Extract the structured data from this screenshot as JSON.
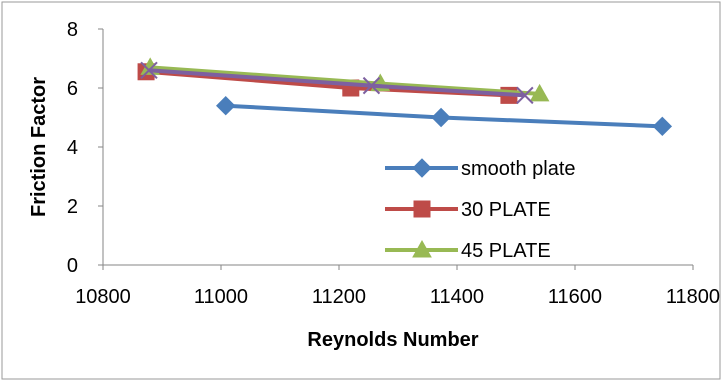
{
  "chart_data": {
    "type": "line",
    "title": "",
    "xlabel": "Reynolds Number",
    "ylabel": "Friction Factor",
    "xlim": [
      10800,
      11800
    ],
    "ylim": [
      0,
      8
    ],
    "xticks": [
      10800,
      11000,
      11200,
      11400,
      11600,
      11800
    ],
    "yticks": [
      0,
      2,
      4,
      6,
      8
    ],
    "xtick_labels": [
      "10800",
      "11000",
      "11200",
      "11400",
      "11600",
      "11800"
    ],
    "ytick_labels": [
      "0",
      "2",
      "4",
      "6",
      "8"
    ],
    "grid": false,
    "legend_position": "right",
    "series": [
      {
        "name": "smooth plate",
        "color": "#4a7ebb",
        "marker": "diamond",
        "x": [
          11008,
          11373,
          11748
        ],
        "y": [
          5.4,
          5.0,
          4.7
        ]
      },
      {
        "name": "30 PLATE",
        "color": "#be4b48",
        "marker": "square",
        "x": [
          10873,
          11220,
          11488
        ],
        "y": [
          6.55,
          6.0,
          5.75
        ]
      },
      {
        "name": "45 PLATE",
        "color": "#98b954",
        "marker": "triangle",
        "x": [
          10880,
          11270,
          11540
        ],
        "y": [
          6.7,
          6.15,
          5.8
        ]
      },
      {
        "name": "",
        "color": "#7d60a0",
        "marker": "x",
        "x": [
          10878,
          11255,
          11515
        ],
        "y": [
          6.6,
          6.08,
          5.75
        ]
      }
    ]
  }
}
